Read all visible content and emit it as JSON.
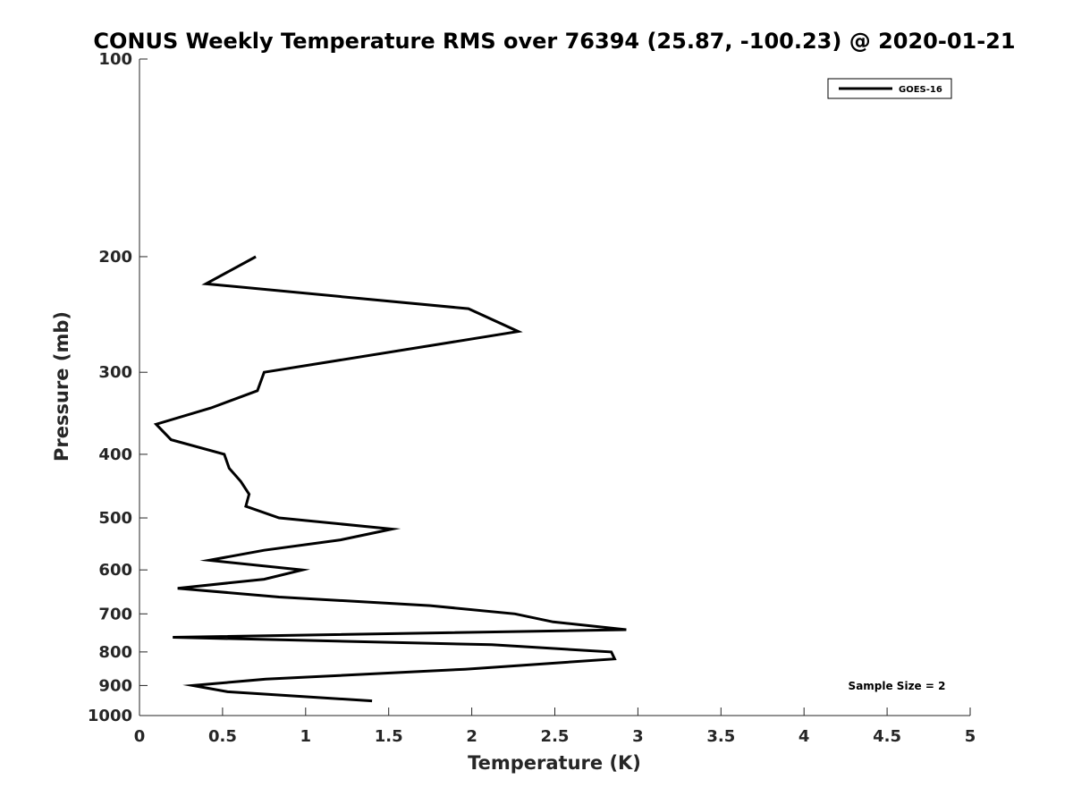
{
  "chart_data": {
    "type": "line",
    "title": "CONUS Weekly Temperature RMS over 76394 (25.87, -100.23) @ 2020-01-21",
    "xlabel": "Temperature (K)",
    "ylabel": "Pressure (mb)",
    "xlim": [
      0,
      5
    ],
    "ylim": [
      100,
      1000
    ],
    "y_scale": "log",
    "y_reversed": true,
    "x_ticks": [
      "0",
      "0.5",
      "1",
      "1.5",
      "2",
      "2.5",
      "3",
      "3.5",
      "4",
      "4.5",
      "5"
    ],
    "y_ticks": [
      "100",
      "200",
      "300",
      "400",
      "500",
      "600",
      "700",
      "800",
      "900",
      "1000"
    ],
    "grid": false,
    "legend": {
      "placement": "top-right",
      "entries": [
        "GOES-16"
      ]
    },
    "annotation": "Sample Size = 2",
    "series": [
      {
        "name": "GOES-16",
        "color": "#000000",
        "x": [
          0.7,
          0.4,
          1.98,
          2.28,
          0.75,
          0.71,
          0.43,
          0.1,
          0.19,
          0.51,
          0.54,
          0.61,
          0.66,
          0.64,
          0.84,
          1.52,
          1.21,
          0.75,
          0.42,
          0.98,
          0.75,
          0.23,
          0.84,
          1.75,
          2.26,
          2.49,
          2.93,
          0.2,
          2.12,
          2.84,
          2.86,
          1.96,
          0.76,
          0.32,
          0.53,
          1.4
        ],
        "y": [
          200,
          220,
          240,
          260,
          300,
          320,
          340,
          360,
          380,
          400,
          420,
          440,
          460,
          480,
          500,
          520,
          540,
          560,
          580,
          600,
          620,
          640,
          660,
          680,
          700,
          720,
          740,
          760,
          780,
          800,
          820,
          850,
          880,
          900,
          920,
          950
        ]
      }
    ]
  }
}
